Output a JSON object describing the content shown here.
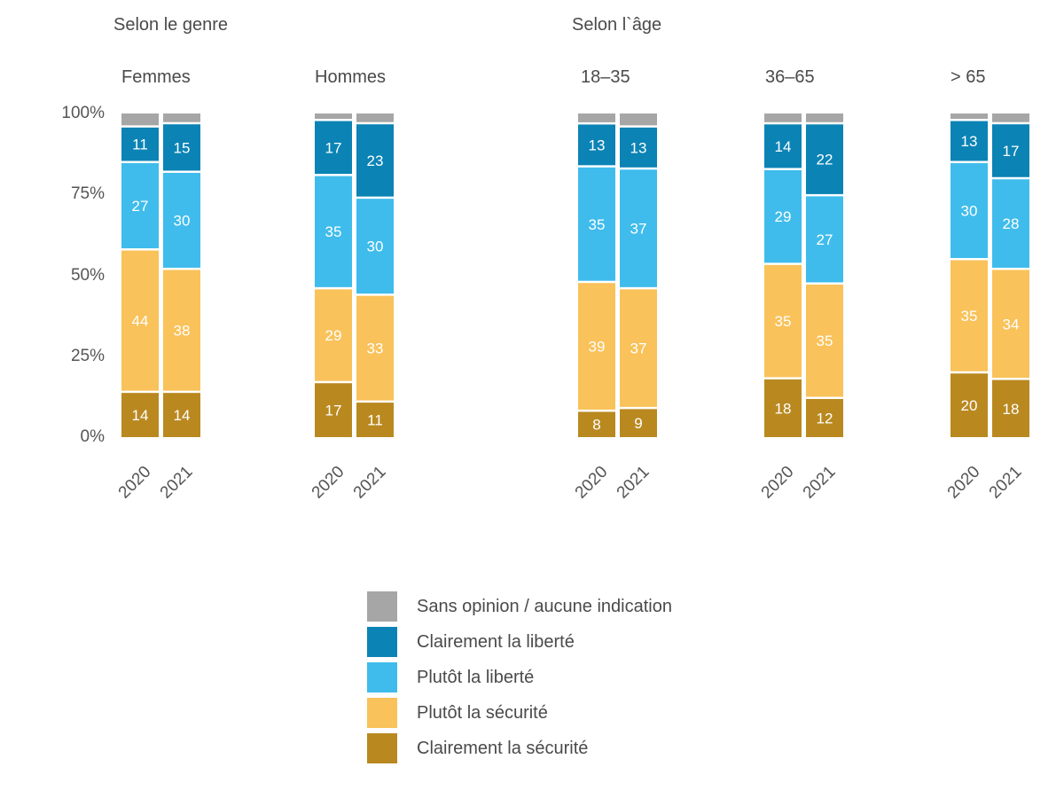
{
  "sections": [
    {
      "title": "Selon le genre"
    },
    {
      "title": "Selon l`âge"
    }
  ],
  "colors": {
    "sans_opinion": "#a6a6a6",
    "clairement_liberte": "#0b83b5",
    "plutot_liberte": "#3fbcec",
    "plutot_securite": "#f9c25a",
    "clairement_securite": "#b98920",
    "text_light": "#ffffff",
    "text_dark": "#333333"
  },
  "legend": [
    {
      "key": "sans_opinion",
      "label": "Sans opinion / aucune indication"
    },
    {
      "key": "clairement_liberte",
      "label": "Clairement la liberté"
    },
    {
      "key": "plutot_liberte",
      "label": "Plutôt la liberté"
    },
    {
      "key": "plutot_securite",
      "label": "Plutôt la sécurité"
    },
    {
      "key": "clairement_securite",
      "label": "Clairement la sécurité"
    }
  ],
  "chart_data": {
    "type": "bar",
    "stacked": true,
    "ylim": [
      0,
      100
    ],
    "yticks": [
      "0%",
      "25%",
      "50%",
      "75%",
      "100%"
    ],
    "stack_order": [
      "clairement_securite",
      "plutot_securite",
      "plutot_liberte",
      "clairement_liberte",
      "sans_opinion"
    ],
    "groups": [
      {
        "name": "Femmes",
        "bars": [
          {
            "year": "2020",
            "values": {
              "clairement_securite": 14,
              "plutot_securite": 44,
              "plutot_liberte": 27,
              "clairement_liberte": 11,
              "sans_opinion": 4
            }
          },
          {
            "year": "2021",
            "values": {
              "clairement_securite": 14,
              "plutot_securite": 38,
              "plutot_liberte": 30,
              "clairement_liberte": 15,
              "sans_opinion": 3
            }
          }
        ]
      },
      {
        "name": "Hommes",
        "bars": [
          {
            "year": "2020",
            "values": {
              "clairement_securite": 17,
              "plutot_securite": 29,
              "plutot_liberte": 35,
              "clairement_liberte": 17,
              "sans_opinion": 2
            }
          },
          {
            "year": "2021",
            "values": {
              "clairement_securite": 11,
              "plutot_securite": 33,
              "plutot_liberte": 30,
              "clairement_liberte": 23,
              "sans_opinion": 3
            }
          }
        ]
      },
      {
        "name": "18–35",
        "bars": [
          {
            "year": "2020",
            "values": {
              "clairement_securite": 8,
              "plutot_securite": 39,
              "plutot_liberte": 35,
              "clairement_liberte": 13,
              "sans_opinion": 3
            }
          },
          {
            "year": "2021",
            "values": {
              "clairement_securite": 9,
              "plutot_securite": 37,
              "plutot_liberte": 37,
              "clairement_liberte": 13,
              "sans_opinion": 4
            }
          }
        ]
      },
      {
        "name": "36–65",
        "bars": [
          {
            "year": "2020",
            "values": {
              "clairement_securite": 18,
              "plutot_securite": 35,
              "plutot_liberte": 29,
              "clairement_liberte": 14,
              "sans_opinion": 3
            }
          },
          {
            "year": "2021",
            "values": {
              "clairement_securite": 12,
              "plutot_securite": 35,
              "plutot_liberte": 27,
              "clairement_liberte": 22,
              "sans_opinion": 3
            }
          }
        ]
      },
      {
        "name": "> 65",
        "bars": [
          {
            "year": "2020",
            "values": {
              "clairement_securite": 20,
              "plutot_securite": 35,
              "plutot_liberte": 30,
              "clairement_liberte": 13,
              "sans_opinion": 2
            }
          },
          {
            "year": "2021",
            "values": {
              "clairement_securite": 18,
              "plutot_securite": 34,
              "plutot_liberte": 28,
              "clairement_liberte": 17,
              "sans_opinion": 3
            }
          }
        ]
      }
    ]
  }
}
